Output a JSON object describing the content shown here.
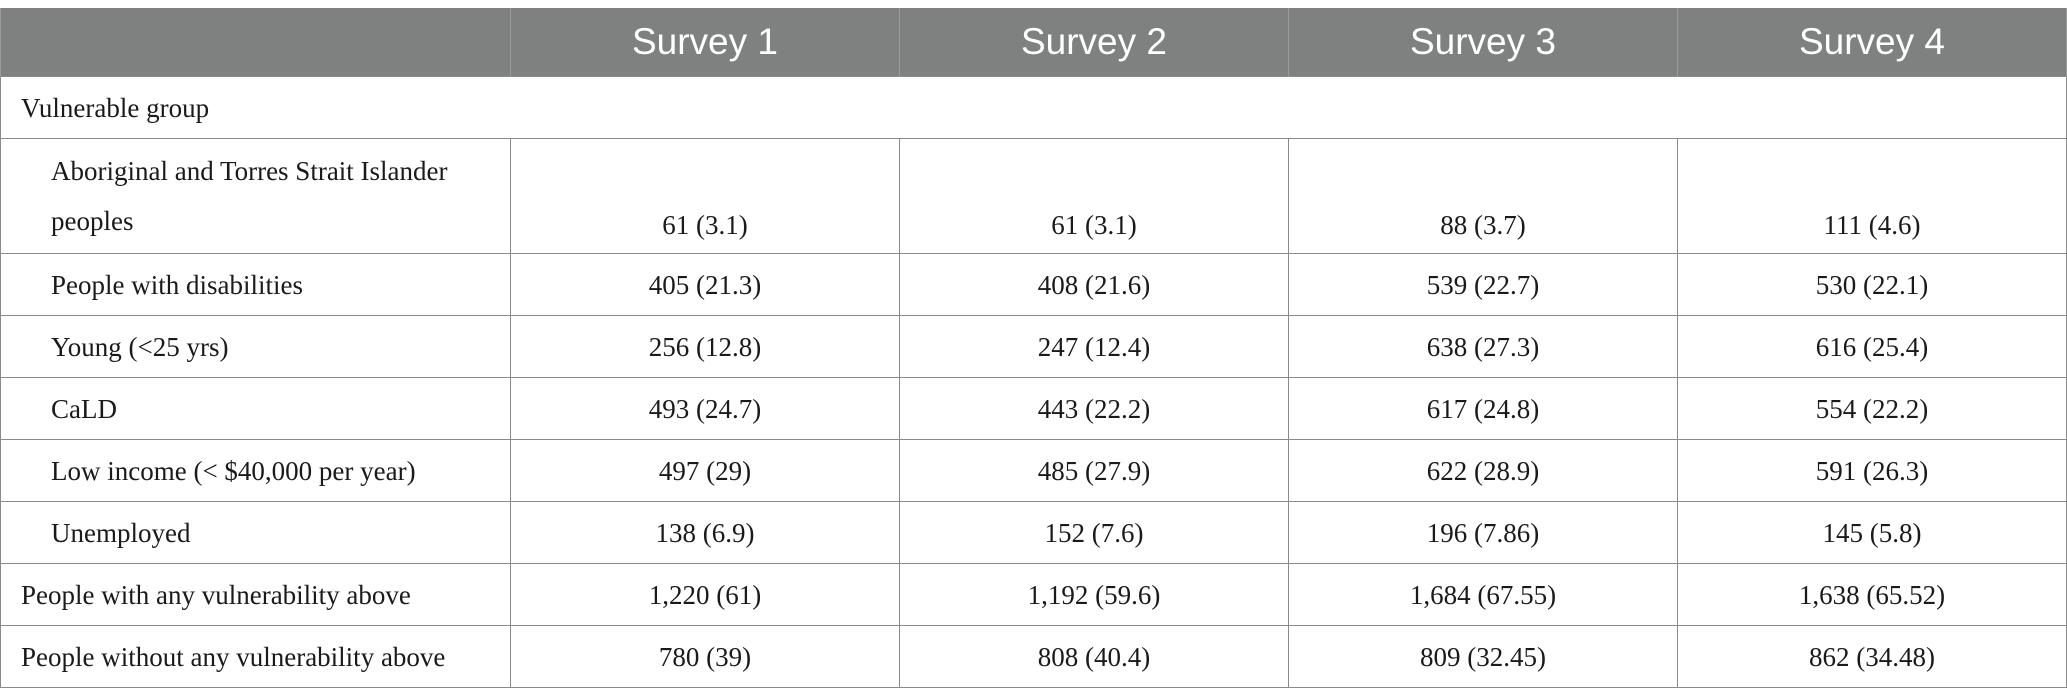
{
  "table": {
    "headers": [
      "",
      "Survey 1",
      "Survey 2",
      "Survey 3",
      "Survey 4"
    ],
    "section_label": "Vulnerable group",
    "rows": [
      {
        "label": "Aboriginal and Torres Strait Islander peoples",
        "values": [
          "61 (3.1)",
          "61 (3.1)",
          "88 (3.7)",
          "111 (4.6)"
        ]
      },
      {
        "label": "People with disabilities",
        "values": [
          "405 (21.3)",
          "408 (21.6)",
          "539 (22.7)",
          "530 (22.1)"
        ]
      },
      {
        "label": "Young (<25 yrs)",
        "values": [
          "256 (12.8)",
          "247 (12.4)",
          "638 (27.3)",
          "616 (25.4)"
        ]
      },
      {
        "label": "CaLD",
        "values": [
          "493 (24.7)",
          "443 (22.2)",
          "617 (24.8)",
          "554 (22.2)"
        ]
      },
      {
        "label": "Low income (< $40,000 per year)",
        "values": [
          "497 (29)",
          "485 (27.9)",
          "622 (28.9)",
          "591 (26.3)"
        ]
      },
      {
        "label": "Unemployed",
        "values": [
          "138 (6.9)",
          "152 (7.6)",
          "196 (7.86)",
          "145 (5.8)"
        ]
      },
      {
        "label": "People with any vulnerability above",
        "values": [
          "1,220 (61)",
          "1,192 (59.6)",
          "1,684 (67.55)",
          "1,638 (65.52)"
        ]
      },
      {
        "label": "People without any vulnerability above",
        "values": [
          "780 (39)",
          "808 (40.4)",
          "809 (32.45)",
          "862 (34.48)"
        ]
      }
    ]
  }
}
